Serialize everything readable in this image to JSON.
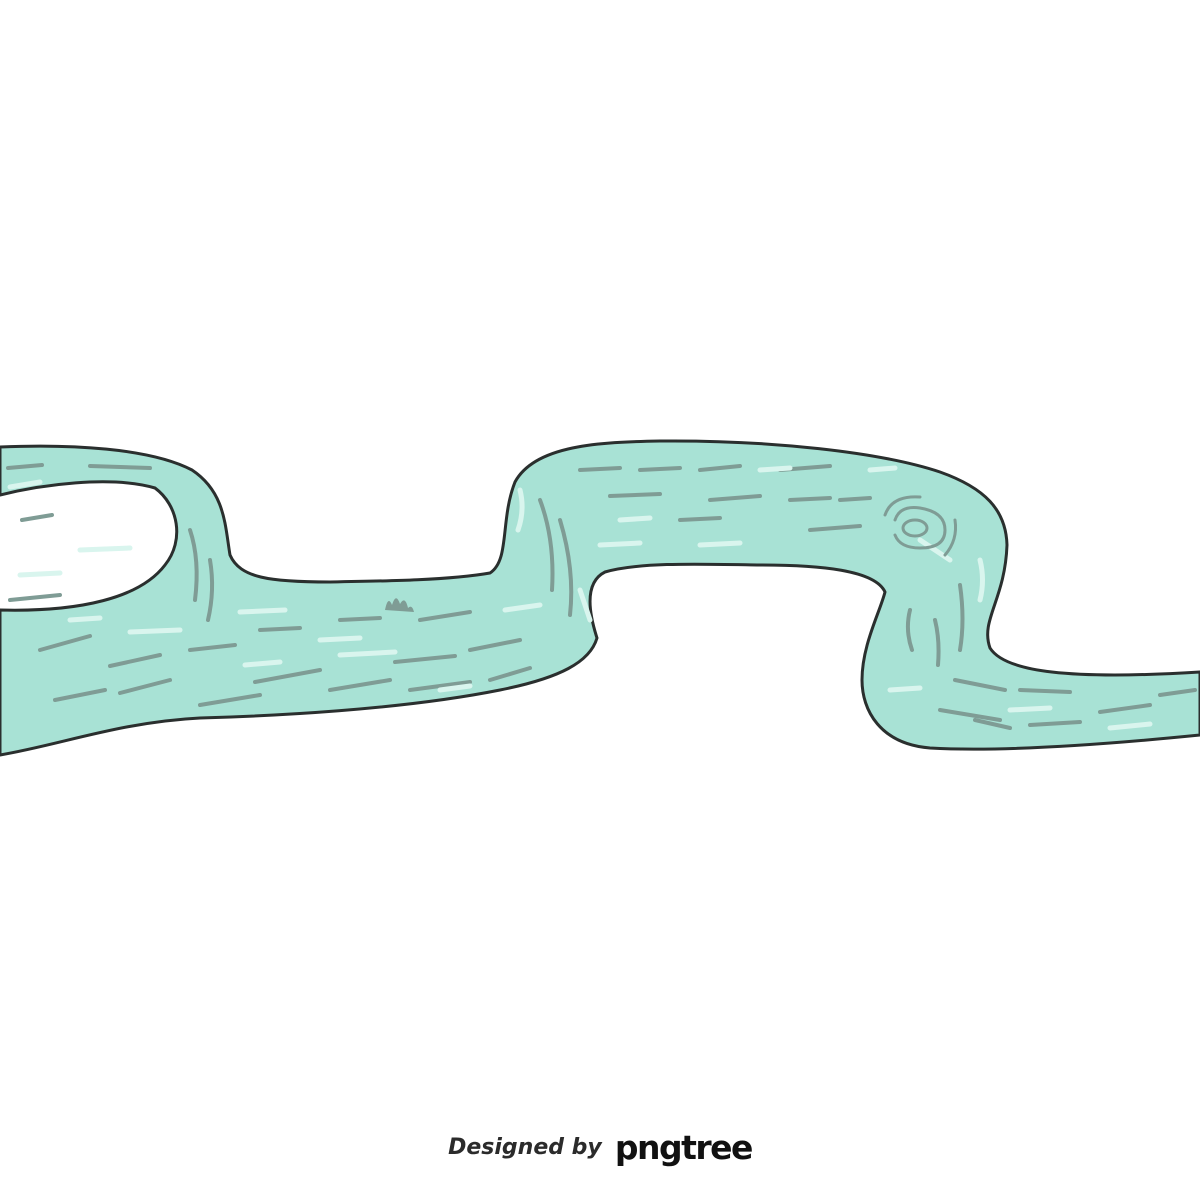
{
  "illustration": {
    "subject": "winding-river-icon",
    "colors": {
      "water": "#a8e2d5",
      "outline": "#2a2f2e",
      "dark_ripple": "#7f9c95",
      "light_ripple": "#d9f5ee"
    }
  },
  "watermark": {
    "prefix": "Designed by",
    "brand": "pngtree"
  }
}
